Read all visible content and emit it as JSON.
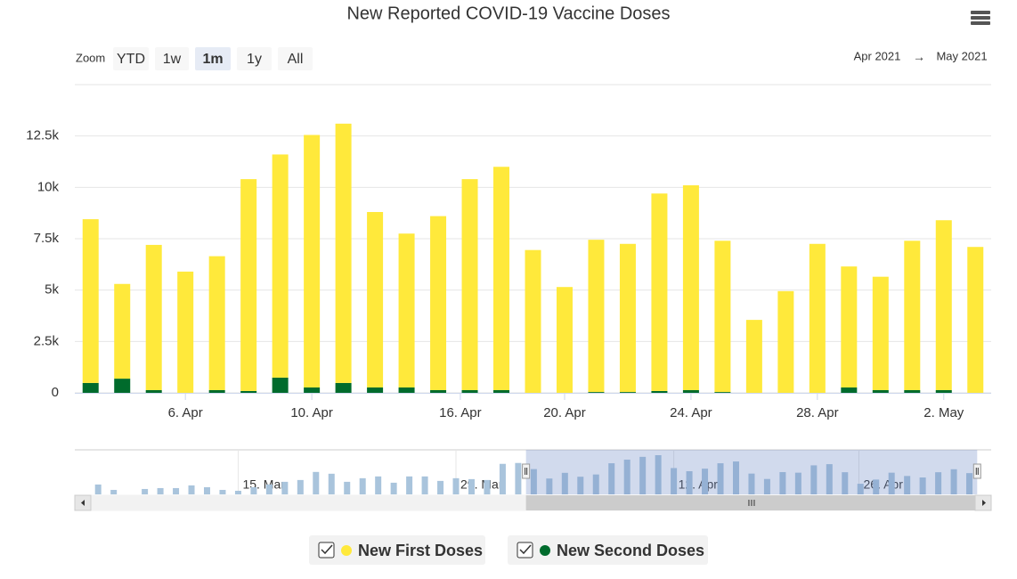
{
  "chart_data": {
    "type": "bar",
    "stacked": true,
    "title": "New Reported COVID-19 Vaccine Doses",
    "categories": [
      null,
      null,
      null,
      null,
      null,
      null,
      null,
      null,
      null,
      null,
      null,
      null,
      null,
      null,
      null,
      null,
      null,
      null,
      null,
      null,
      null,
      null,
      null,
      null,
      null,
      null,
      null,
      null,
      null
    ],
    "xlim": [
      -0.5,
      28.5
    ],
    "xticks": [
      {
        "value": 3,
        "label": "6. Apr"
      },
      {
        "value": 7,
        "label": "10. Apr"
      },
      {
        "value": 11.7,
        "label": "16. Apr"
      },
      {
        "value": 15,
        "label": "20. Apr"
      },
      {
        "value": 19,
        "label": "24. Apr"
      },
      {
        "value": 23,
        "label": "28. Apr"
      },
      {
        "value": 27,
        "label": "2. May"
      }
    ],
    "ylim": [
      0,
      15000
    ],
    "yticks": [
      0,
      {
        "value": 2500,
        "label": "2.5k"
      },
      {
        "value": 5000,
        "label": "5k"
      },
      {
        "value": 7500,
        "label": "7.5k"
      },
      {
        "value": 10000,
        "label": "10k"
      },
      {
        "value": 12500,
        "label": "12.5k"
      }
    ],
    "grid": true,
    "legend": "bottom",
    "series": [
      {
        "name": "New First Doses",
        "color": "#ffe93b",
        "values": [
          7970,
          4610,
          7070,
          5900,
          6520,
          10310,
          10860,
          12290,
          12620,
          8540,
          7490,
          8470,
          10270,
          10870,
          6950,
          5150,
          7410,
          7210,
          9610,
          9970,
          7360,
          3550,
          4950,
          7250,
          5890,
          5520,
          7270,
          8270,
          7100
        ]
      },
      {
        "name": "New Second Doses",
        "color": "#006b2c",
        "values": [
          480,
          690,
          130,
          0,
          130,
          90,
          740,
          260,
          480,
          260,
          260,
          130,
          130,
          130,
          0,
          0,
          40,
          40,
          90,
          130,
          40,
          0,
          0,
          0,
          260,
          130,
          130,
          130,
          0
        ]
      }
    ]
  },
  "range_selector": {
    "label": "Zoom",
    "buttons": [
      "YTD",
      "1w",
      "1m",
      "1y",
      "All"
    ],
    "selected": "1m",
    "disabled": [
      "1y"
    ],
    "from": "Apr 2021",
    "arrow": "→",
    "to": "May 2021"
  },
  "navigator": {
    "xlim": [
      -1.5,
      57.4
    ],
    "selected_range": [
      27.5,
      56.5
    ],
    "xticks": [
      {
        "value": 9,
        "label": "15. Mar"
      },
      {
        "value": 23,
        "label": "29. Mar"
      },
      {
        "value": 37,
        "label": "12. Apr"
      },
      {
        "value": 48.9,
        "label": "26. Apr"
      }
    ],
    "values": [
      3300,
      1500,
      null,
      1800,
      2100,
      2100,
      3000,
      2400,
      1500,
      1200,
      2400,
      3300,
      4200,
      4800,
      7500,
      6900,
      4200,
      5400,
      6000,
      3900,
      6000,
      6000,
      4500,
      5400,
      5100,
      4800,
      10200,
      10500,
      8450,
      5300,
      7200,
      5900,
      6650,
      10400,
      11600,
      12550,
      13100,
      8800,
      7750,
      8600,
      10400,
      11000,
      6950,
      5150,
      7450,
      7250,
      9700,
      10100,
      7400,
      3550,
      4950,
      7250,
      6150,
      5650,
      7400,
      8400,
      7100
    ]
  }
}
